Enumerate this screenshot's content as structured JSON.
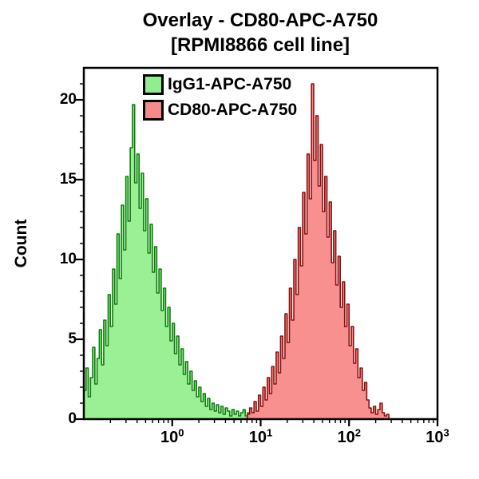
{
  "title": {
    "line1": "Overlay - CD80-APC-A750",
    "line2": "[RPMI8866 cell line]"
  },
  "y_axis": {
    "label": "Count",
    "ticks": [
      0,
      5,
      10,
      15,
      20
    ],
    "minor_step": 1
  },
  "x_axis": {
    "base": "10",
    "tick_exponents": [
      0,
      1,
      2,
      3
    ],
    "scale": "log"
  },
  "legend": {
    "items": [
      {
        "label": "IgG1-APC-A750",
        "fill": "#90EE90"
      },
      {
        "label": "CD80-APC-A750",
        "fill": "#F58A8A"
      }
    ]
  },
  "colors": {
    "axis": "#000000",
    "background": "#FFFFFF",
    "green_fill": "#9BEF94",
    "green_stroke": "#0A7F0A",
    "red_fill": "#F89090",
    "red_stroke": "#8B0F0F"
  },
  "chart_data": {
    "type": "area",
    "subtype": "flow-cytometry-histogram-overlay",
    "title": "Overlay - CD80-APC-A750 [RPMI8866 cell line]",
    "ylabel": "Count",
    "xlabel": "",
    "x_scale": "log10",
    "xlim_log": [
      -1,
      3
    ],
    "ylim": [
      0,
      22
    ],
    "y_ticks": [
      0,
      5,
      10,
      15,
      20
    ],
    "x_tick_exponents": [
      0,
      1,
      2,
      3
    ],
    "grid": false,
    "legend_position": "top-left-inside",
    "series": [
      {
        "name": "IgG1-APC-A750",
        "fill": "#9BEF94",
        "stroke": "#0A7F0A",
        "peak_x": 0.35,
        "peak_count": 19.7,
        "log_start": -1.0,
        "log_step": 0.025,
        "baseline_to": 3.0,
        "values": [
          1.8,
          3.2,
          1.4,
          2.6,
          4.5,
          2.2,
          3.8,
          5.6,
          3.4,
          6.2,
          4.6,
          7.8,
          5.8,
          9.4,
          7.2,
          11.6,
          8.8,
          13.4,
          10.6,
          15.2,
          12.4,
          17.0,
          19.7,
          14.8,
          16.6,
          13.2,
          15.4,
          11.8,
          13.8,
          10.4,
          12.2,
          9.2,
          10.8,
          7.9,
          9.4,
          6.8,
          8.2,
          5.8,
          7.0,
          4.9,
          6.0,
          4.1,
          5.2,
          3.4,
          4.4,
          2.8,
          3.6,
          2.2,
          3.0,
          1.8,
          2.4,
          1.4,
          2.0,
          1.1,
          1.6,
          0.8,
          1.3,
          0.6,
          1.0,
          0.5,
          0.9,
          0.4,
          0.8,
          0.3,
          0.7,
          0.5,
          0.2,
          0.6,
          0.3,
          0.5,
          0.2,
          0.4,
          0.6,
          0.2,
          0.4,
          0.1,
          0.3,
          0.5,
          0.2,
          0.3,
          0.0
        ]
      },
      {
        "name": "CD80-APC-A750",
        "fill": "#F89090",
        "stroke": "#8B0F0F",
        "peak_x": 40,
        "peak_count": 21.0,
        "log_start": 0.85,
        "log_step": 0.025,
        "baseline_to": null,
        "values": [
          0.3,
          0.7,
          0.4,
          1.1,
          0.5,
          1.5,
          0.8,
          2.0,
          1.2,
          2.6,
          1.6,
          3.3,
          2.2,
          4.2,
          2.9,
          5.2,
          3.8,
          6.6,
          4.8,
          8.2,
          6.2,
          10.0,
          7.8,
          12.0,
          9.6,
          14.2,
          11.6,
          16.6,
          13.8,
          21.0,
          16.2,
          19.0,
          14.6,
          17.2,
          13.0,
          15.2,
          11.4,
          13.6,
          9.8,
          11.8,
          8.4,
          10.2,
          7.0,
          8.6,
          5.8,
          7.2,
          4.6,
          5.8,
          3.5,
          4.4,
          2.6,
          3.2,
          1.8,
          2.3,
          1.2,
          0.7,
          0.4,
          0.8,
          0.3,
          0.6,
          1.0,
          0.4,
          0.2,
          0.3,
          0.0
        ]
      }
    ]
  }
}
